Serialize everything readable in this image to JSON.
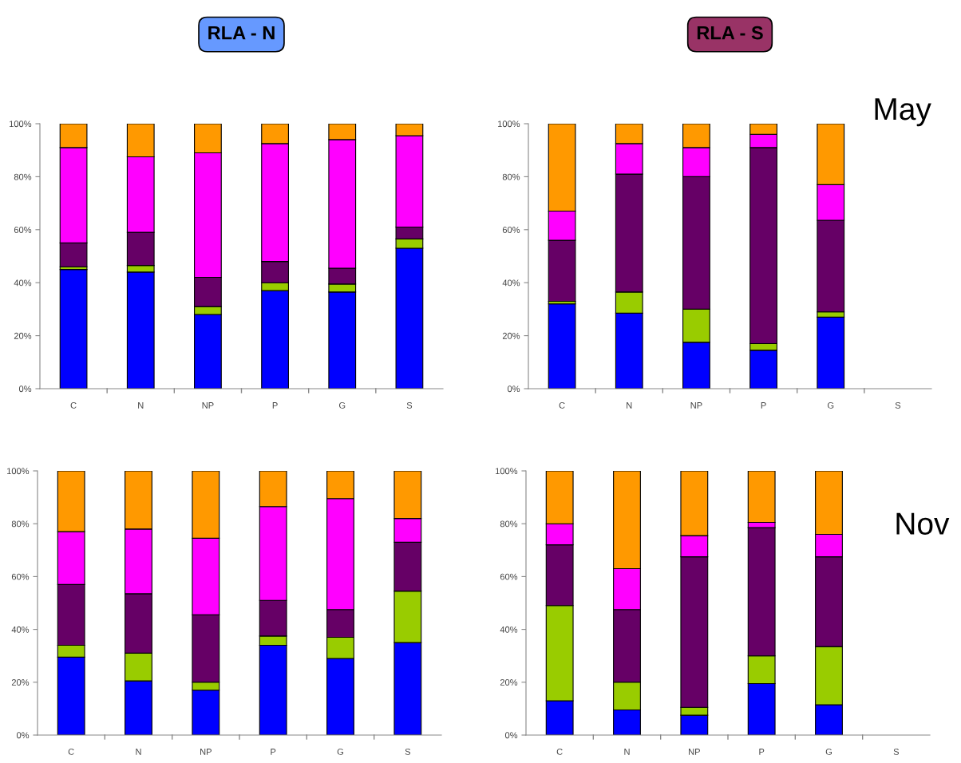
{
  "chart_data": [
    {
      "type": "bar",
      "title": "RLA - N",
      "stacked": true,
      "categories": [
        "C",
        "N",
        "NP",
        "P",
        "G",
        "S"
      ],
      "ylim": [
        0,
        100
      ],
      "yticks": [
        {
          "value": 0,
          "label": "0%"
        },
        {
          "value": 20,
          "label": "20%"
        },
        {
          "value": 40,
          "label": "40%"
        },
        {
          "value": 60,
          "label": "60%"
        },
        {
          "value": 80,
          "label": "80%"
        },
        {
          "value": 100,
          "label": "100%"
        }
      ],
      "grid": false,
      "legend": false,
      "series": [
        {
          "color": "#0000ff",
          "values": [
            45,
            44,
            28,
            37,
            36.5,
            53
          ]
        },
        {
          "color": "#99cc00",
          "values": [
            1,
            2.5,
            3,
            3,
            3,
            3.5
          ]
        },
        {
          "color": "#660066",
          "values": [
            9,
            12.5,
            11,
            8,
            6,
            4.5
          ]
        },
        {
          "color": "#ff00ff",
          "values": [
            36,
            28.5,
            47,
            44.5,
            48.5,
            34.5
          ]
        },
        {
          "color": "#ff9900",
          "values": [
            9,
            12.5,
            11,
            7.5,
            6,
            4.5
          ]
        }
      ]
    },
    {
      "type": "bar",
      "title": "RLA - S",
      "annotations": [
        "May"
      ],
      "stacked": true,
      "categories": [
        "C",
        "N",
        "NP",
        "P",
        "G",
        "S"
      ],
      "ylim": [
        0,
        100
      ],
      "yticks": [
        {
          "value": 0,
          "label": "0%"
        },
        {
          "value": 20,
          "label": "20%"
        },
        {
          "value": 40,
          "label": "40%"
        },
        {
          "value": 60,
          "label": "60%"
        },
        {
          "value": 80,
          "label": "80%"
        },
        {
          "value": 100,
          "label": "100%"
        }
      ],
      "grid": false,
      "legend": false,
      "series": [
        {
          "color": "#0000ff",
          "values": [
            32,
            28.5,
            17.5,
            14.5,
            27,
            null
          ]
        },
        {
          "color": "#99cc00",
          "values": [
            1,
            8,
            12.5,
            2.5,
            2,
            null
          ]
        },
        {
          "color": "#660066",
          "values": [
            23,
            44.5,
            50,
            74,
            34.5,
            null
          ]
        },
        {
          "color": "#ff00ff",
          "values": [
            11,
            11.5,
            11,
            5,
            13.5,
            null
          ]
        },
        {
          "color": "#ff9900",
          "values": [
            33,
            7.5,
            9,
            4,
            23,
            null
          ]
        }
      ]
    },
    {
      "type": "bar",
      "stacked": true,
      "categories": [
        "C",
        "N",
        "NP",
        "P",
        "G",
        "S"
      ],
      "ylim": [
        0,
        100
      ],
      "yticks": [
        {
          "value": 0,
          "label": "0%"
        },
        {
          "value": 20,
          "label": "20%"
        },
        {
          "value": 40,
          "label": "40%"
        },
        {
          "value": 60,
          "label": "60%"
        },
        {
          "value": 80,
          "label": "80%"
        },
        {
          "value": 100,
          "label": "100%"
        }
      ],
      "grid": false,
      "legend": false,
      "series": [
        {
          "color": "#0000ff",
          "values": [
            29.5,
            20.5,
            17,
            34,
            29,
            35
          ]
        },
        {
          "color": "#99cc00",
          "values": [
            4.5,
            10.5,
            3,
            3.5,
            8,
            19.5
          ]
        },
        {
          "color": "#660066",
          "values": [
            23,
            22.5,
            25.5,
            13.5,
            10.5,
            18.5
          ]
        },
        {
          "color": "#ff00ff",
          "values": [
            20,
            24.5,
            29,
            35.5,
            42,
            9
          ]
        },
        {
          "color": "#ff9900",
          "values": [
            23,
            22,
            25.5,
            13.5,
            10.5,
            18
          ]
        }
      ]
    },
    {
      "type": "bar",
      "annotations": [
        "Nov"
      ],
      "stacked": true,
      "categories": [
        "C",
        "N",
        "NP",
        "P",
        "G",
        "S"
      ],
      "ylim": [
        0,
        100
      ],
      "yticks": [
        {
          "value": 0,
          "label": "0%"
        },
        {
          "value": 20,
          "label": "20%"
        },
        {
          "value": 40,
          "label": "40%"
        },
        {
          "value": 60,
          "label": "60%"
        },
        {
          "value": 80,
          "label": "80%"
        },
        {
          "value": 100,
          "label": "100%"
        }
      ],
      "grid": false,
      "legend": false,
      "series": [
        {
          "color": "#0000ff",
          "values": [
            13,
            9.5,
            7.5,
            19.5,
            11.5,
            null
          ]
        },
        {
          "color": "#99cc00",
          "values": [
            36,
            10.5,
            3,
            10.5,
            22,
            null
          ]
        },
        {
          "color": "#660066",
          "values": [
            23,
            27.5,
            57,
            48.5,
            34,
            null
          ]
        },
        {
          "color": "#ff00ff",
          "values": [
            8,
            15.5,
            8,
            2,
            8.5,
            null
          ]
        },
        {
          "color": "#ff9900",
          "values": [
            20,
            37,
            24.5,
            19.5,
            24,
            null
          ]
        }
      ]
    }
  ]
}
